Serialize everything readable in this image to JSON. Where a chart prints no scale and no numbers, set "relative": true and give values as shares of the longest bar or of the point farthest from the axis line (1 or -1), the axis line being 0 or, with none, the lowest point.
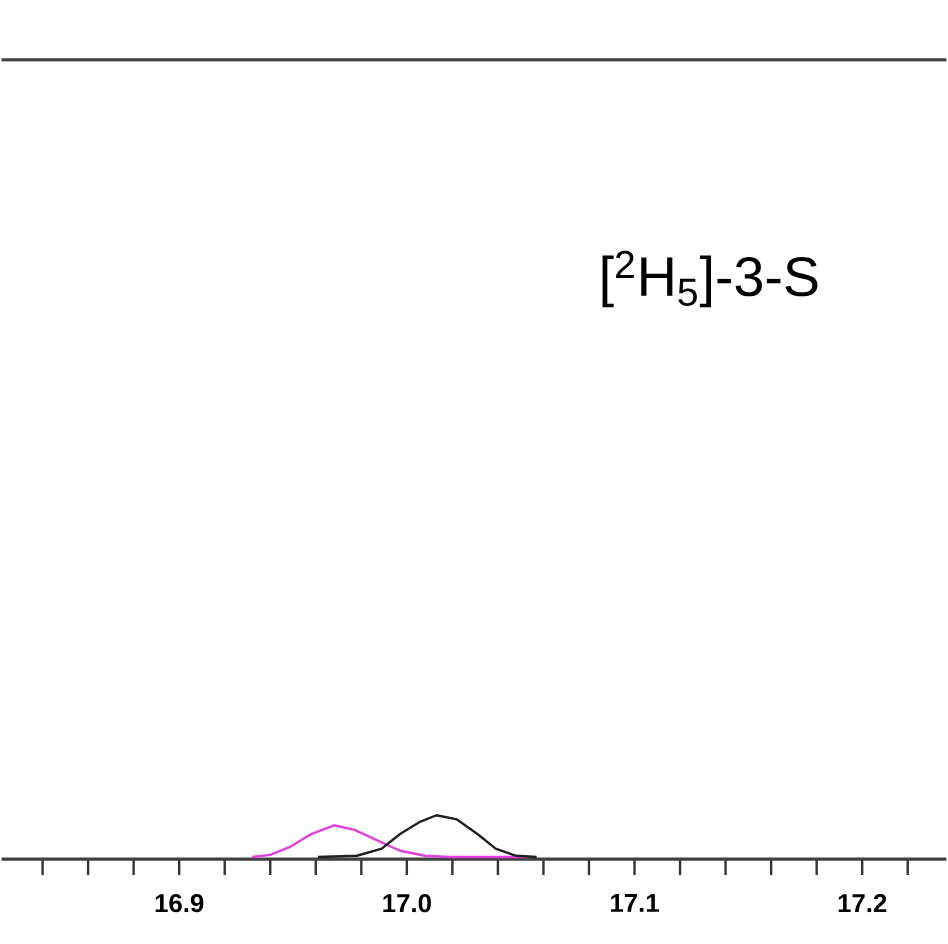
{
  "chart_data": {
    "type": "line",
    "relative": true,
    "tick_labels": "x",
    "xlim": [
      16.822,
      17.237
    ],
    "xticks": [
      {
        "value": 16.84,
        "label": null
      },
      {
        "value": 16.86,
        "label": null
      },
      {
        "value": 16.88,
        "label": null
      },
      "16.9",
      {
        "value": 16.92,
        "label": null
      },
      {
        "value": 16.94,
        "label": null
      },
      {
        "value": 16.96,
        "label": null
      },
      {
        "value": 16.98,
        "label": null
      },
      {
        "value": 17.0,
        "label": "17.0"
      },
      {
        "value": 17.02,
        "label": null
      },
      {
        "value": 17.04,
        "label": null
      },
      {
        "value": 17.06,
        "label": null
      },
      {
        "value": 17.08,
        "label": null
      },
      {
        "value": 17.1,
        "label": "17.1"
      },
      {
        "value": 17.12,
        "label": null
      },
      {
        "value": 17.14,
        "label": null
      },
      {
        "value": 17.16,
        "label": null
      },
      {
        "value": 17.18,
        "label": null
      },
      {
        "value": 17.2,
        "label": "17.2"
      },
      {
        "value": 17.22,
        "label": null
      }
    ],
    "annotations": [
      "[$^{2}$H$_{5}$]-3-S"
    ],
    "series": [
      {
        "color": "#e040e0",
        "x": [
          16.932,
          16.94,
          16.949,
          16.958,
          16.968,
          16.977,
          16.987,
          16.997,
          17.008,
          17.019,
          17.054
        ],
        "values": [
          0,
          0.05,
          0.25,
          0.55,
          0.76,
          0.65,
          0.4,
          0.15,
          0.03,
          0,
          0
        ]
      },
      {
        "color": "#202020",
        "x": [
          16.961,
          16.978,
          16.989,
          16.997,
          17.006,
          17.013,
          17.022,
          17.031,
          17.039,
          17.048,
          17.057
        ],
        "values": [
          0,
          0.03,
          0.2,
          0.55,
          0.85,
          1,
          0.9,
          0.55,
          0.2,
          0.03,
          0
        ]
      }
    ]
  }
}
